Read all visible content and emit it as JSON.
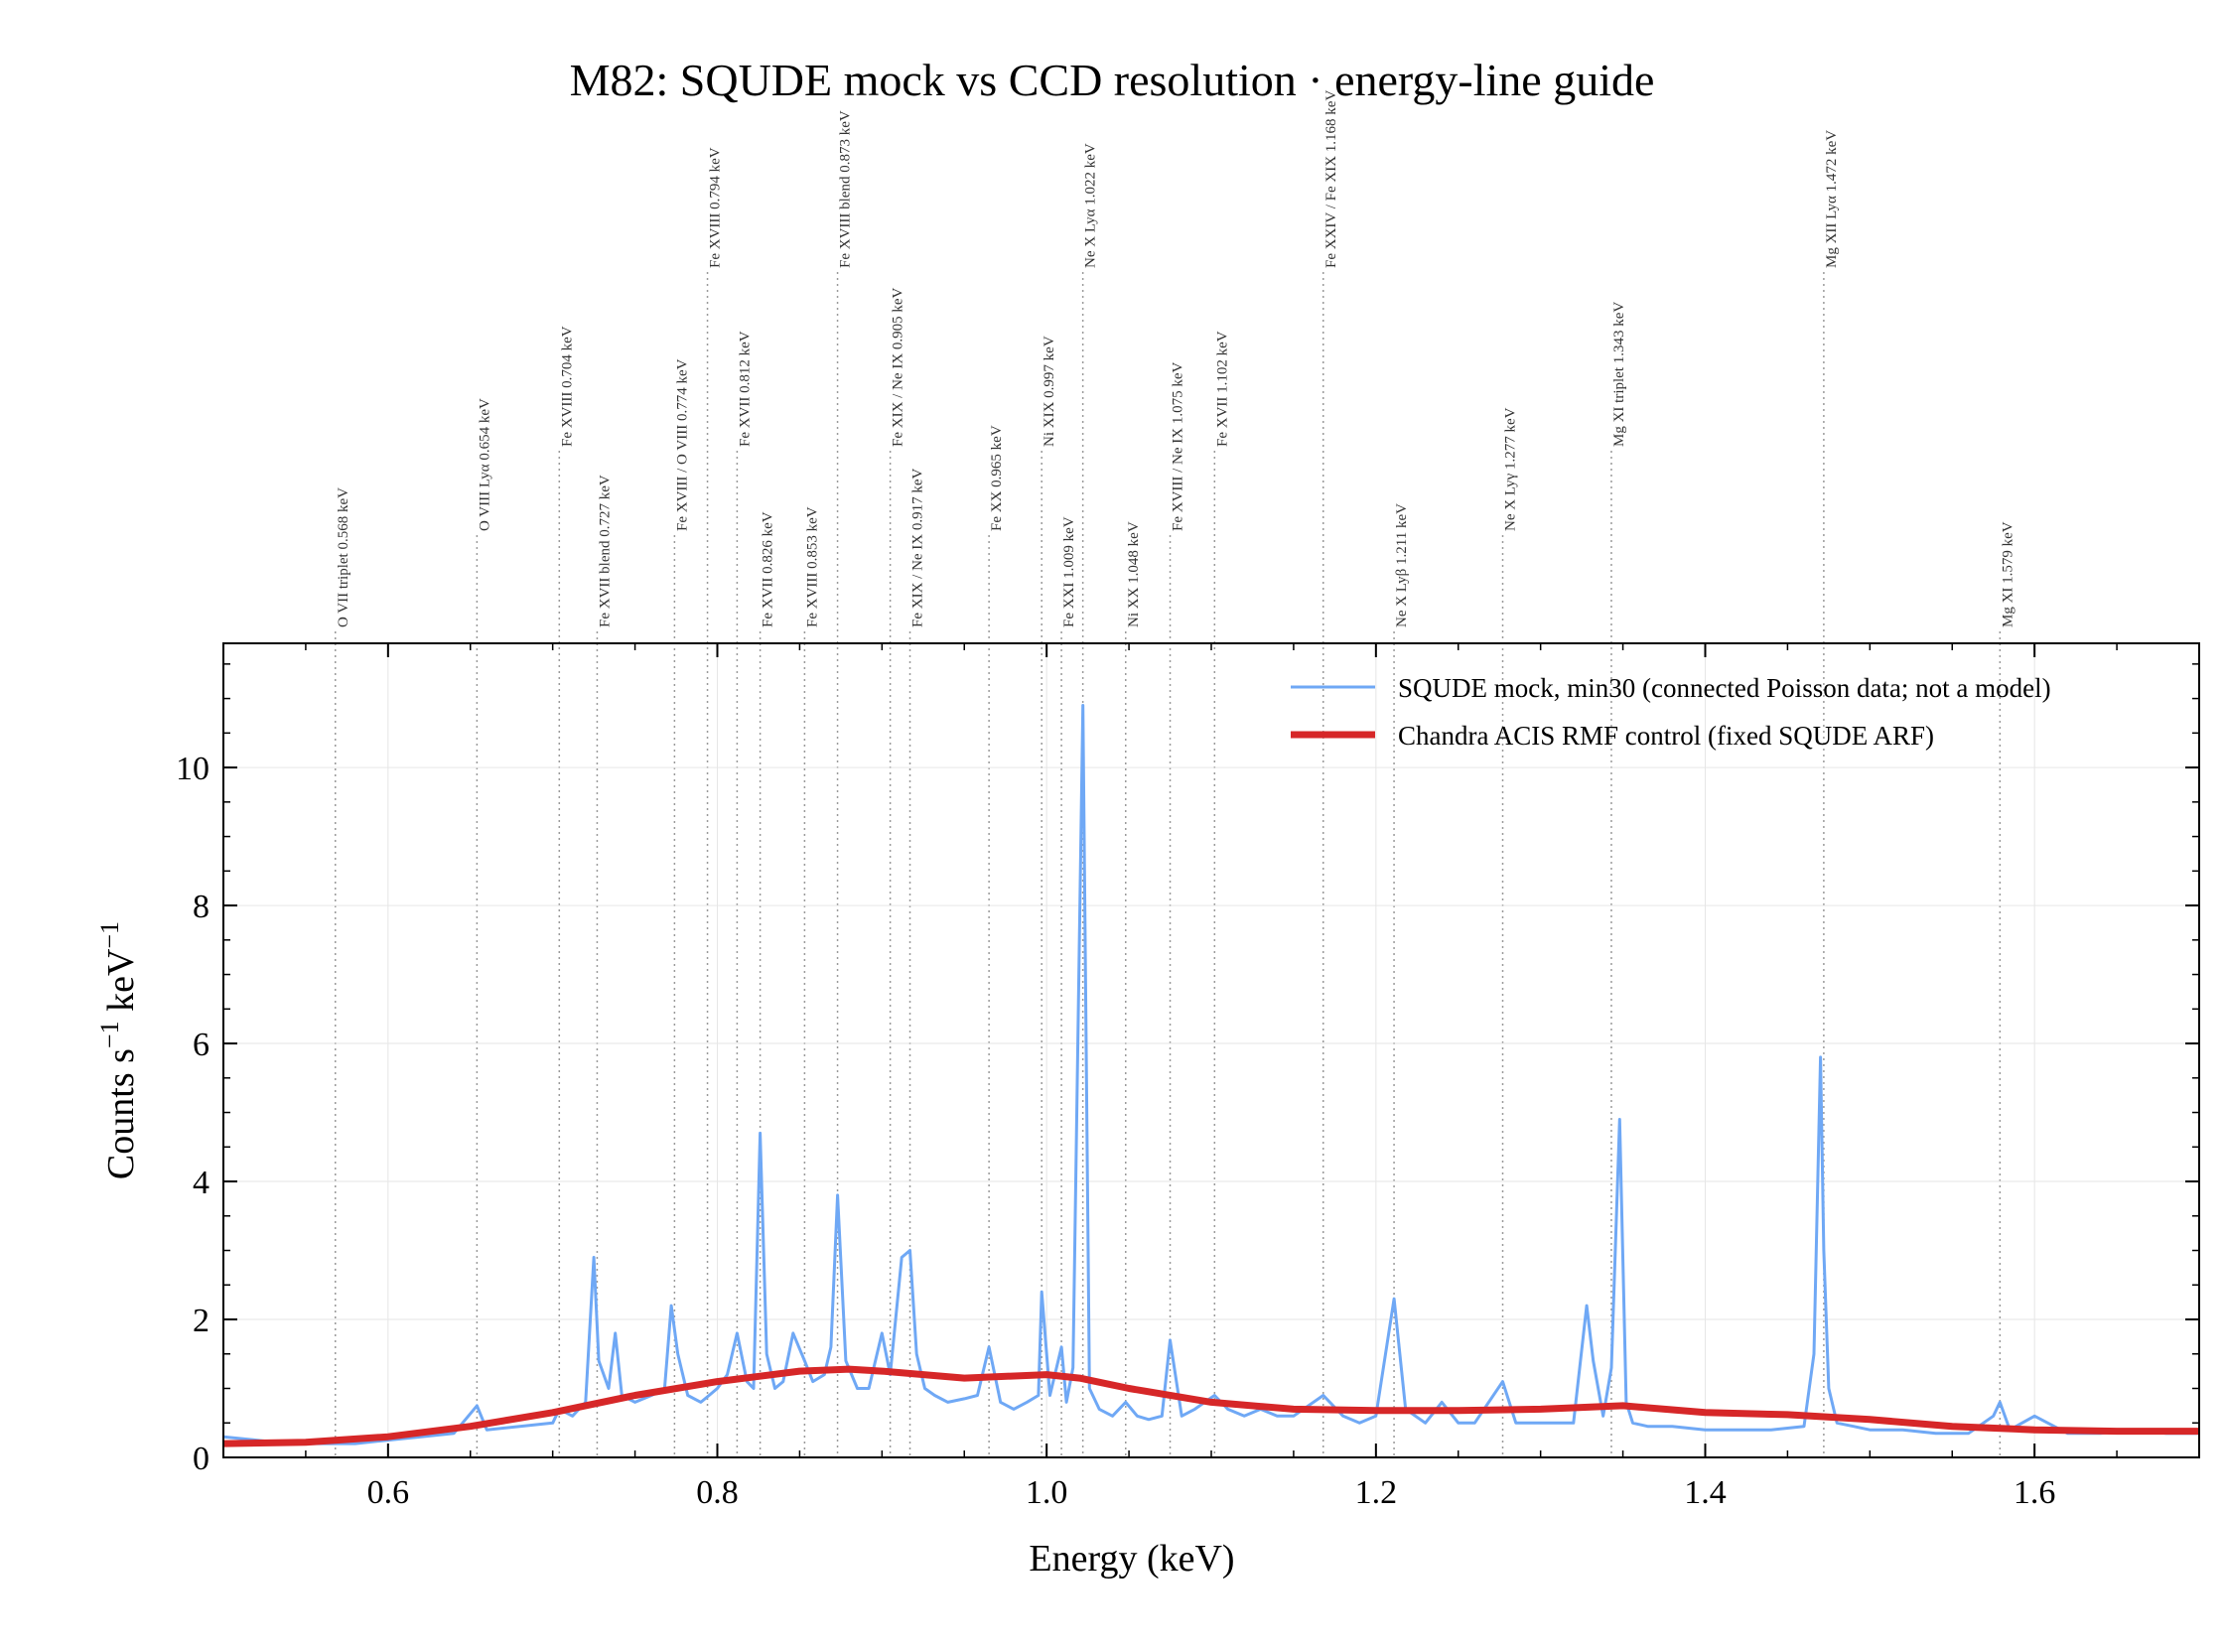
{
  "chart_data": {
    "type": "line",
    "title": "M82: SQUDE mock vs CCD resolution · energy-line guide",
    "xlabel": "Energy (keV)",
    "ylabel_main": "Counts s",
    "ylabel_sup1": "−1",
    "ylabel_mid": " keV",
    "ylabel_sup2": "−1",
    "xlim": [
      0.5,
      1.7
    ],
    "ylim": [
      0,
      11.8
    ],
    "xticks": [
      0.6,
      0.8,
      1.0,
      1.2,
      1.4,
      1.6
    ],
    "xtick_labels": [
      "0.6",
      "0.8",
      "1.0",
      "1.2",
      "1.4",
      "1.6"
    ],
    "yticks": [
      0,
      2,
      4,
      6,
      8,
      10
    ],
    "ytick_labels": [
      "0",
      "2",
      "4",
      "6",
      "8",
      "10"
    ],
    "grid": true,
    "legend_position": "top-right",
    "series": [
      {
        "name": "SQUDE mock, min30 (connected Poisson data; not a model)",
        "color": "#6fa8f5",
        "style": "thin",
        "x": [
          0.5,
          0.52,
          0.54,
          0.56,
          0.58,
          0.6,
          0.62,
          0.64,
          0.654,
          0.66,
          0.68,
          0.7,
          0.704,
          0.712,
          0.72,
          0.725,
          0.728,
          0.734,
          0.738,
          0.742,
          0.75,
          0.76,
          0.768,
          0.772,
          0.776,
          0.782,
          0.79,
          0.795,
          0.8,
          0.806,
          0.812,
          0.818,
          0.822,
          0.826,
          0.83,
          0.835,
          0.84,
          0.846,
          0.853,
          0.858,
          0.865,
          0.869,
          0.873,
          0.878,
          0.885,
          0.892,
          0.9,
          0.905,
          0.912,
          0.917,
          0.921,
          0.926,
          0.932,
          0.94,
          0.95,
          0.958,
          0.965,
          0.972,
          0.98,
          0.988,
          0.995,
          0.997,
          1.002,
          1.009,
          1.012,
          1.016,
          1.022,
          1.026,
          1.032,
          1.04,
          1.048,
          1.055,
          1.062,
          1.07,
          1.075,
          1.082,
          1.09,
          1.102,
          1.11,
          1.12,
          1.13,
          1.14,
          1.15,
          1.168,
          1.18,
          1.19,
          1.2,
          1.211,
          1.218,
          1.23,
          1.24,
          1.25,
          1.26,
          1.277,
          1.285,
          1.3,
          1.32,
          1.328,
          1.332,
          1.338,
          1.343,
          1.348,
          1.352,
          1.356,
          1.365,
          1.38,
          1.4,
          1.42,
          1.44,
          1.46,
          1.466,
          1.47,
          1.472,
          1.475,
          1.48,
          1.49,
          1.5,
          1.52,
          1.54,
          1.56,
          1.575,
          1.579,
          1.585,
          1.6,
          1.62,
          1.64,
          1.66,
          1.68,
          1.7
        ],
        "y": [
          0.3,
          0.25,
          0.2,
          0.2,
          0.2,
          0.25,
          0.3,
          0.35,
          0.75,
          0.4,
          0.45,
          0.5,
          0.7,
          0.6,
          0.8,
          2.9,
          1.4,
          1.0,
          1.8,
          0.9,
          0.8,
          0.9,
          1.0,
          2.2,
          1.5,
          0.9,
          0.8,
          0.9,
          1.0,
          1.2,
          1.8,
          1.1,
          1.0,
          4.7,
          1.5,
          1.0,
          1.1,
          1.8,
          1.4,
          1.1,
          1.2,
          1.6,
          3.8,
          1.4,
          1.0,
          1.0,
          1.8,
          1.2,
          2.9,
          3.0,
          1.5,
          1.0,
          0.9,
          0.8,
          0.85,
          0.9,
          1.6,
          0.8,
          0.7,
          0.8,
          0.9,
          2.4,
          0.9,
          1.6,
          0.8,
          1.3,
          10.9,
          1.0,
          0.7,
          0.6,
          0.8,
          0.6,
          0.55,
          0.6,
          1.7,
          0.6,
          0.7,
          0.9,
          0.7,
          0.6,
          0.7,
          0.6,
          0.6,
          0.9,
          0.6,
          0.5,
          0.6,
          2.3,
          0.7,
          0.5,
          0.8,
          0.5,
          0.5,
          1.1,
          0.5,
          0.5,
          0.5,
          2.2,
          1.4,
          0.6,
          1.3,
          4.9,
          0.8,
          0.5,
          0.45,
          0.45,
          0.4,
          0.4,
          0.4,
          0.45,
          1.5,
          5.8,
          3.0,
          1.0,
          0.5,
          0.45,
          0.4,
          0.4,
          0.35,
          0.35,
          0.6,
          0.8,
          0.4,
          0.6,
          0.35,
          0.35,
          0.4,
          0.35,
          0.35
        ]
      },
      {
        "name": "Chandra ACIS RMF control (fixed SQUDE ARF)",
        "color": "#d62728",
        "style": "thick",
        "x": [
          0.5,
          0.55,
          0.6,
          0.65,
          0.7,
          0.75,
          0.8,
          0.85,
          0.88,
          0.9,
          0.95,
          1.0,
          1.02,
          1.05,
          1.1,
          1.15,
          1.2,
          1.25,
          1.3,
          1.35,
          1.4,
          1.45,
          1.5,
          1.55,
          1.6,
          1.65,
          1.7
        ],
        "y": [
          0.2,
          0.22,
          0.3,
          0.45,
          0.65,
          0.9,
          1.1,
          1.25,
          1.28,
          1.25,
          1.15,
          1.2,
          1.15,
          1.0,
          0.8,
          0.7,
          0.68,
          0.68,
          0.7,
          0.75,
          0.65,
          0.62,
          0.55,
          0.45,
          0.4,
          0.38,
          0.38
        ]
      }
    ],
    "line_guides": [
      {
        "label": "O VII triplet 0.568 keV",
        "energy": 0.568,
        "tier": 0
      },
      {
        "label": "O VIII Lyα 0.654 keV",
        "energy": 0.654,
        "tier": 1
      },
      {
        "label": "Fe XVIII 0.704 keV",
        "energy": 0.704,
        "tier": 2
      },
      {
        "label": "Fe XVII blend 0.727 keV",
        "energy": 0.727,
        "tier": 0
      },
      {
        "label": "Fe XVIII / O VIII 0.774 keV",
        "energy": 0.774,
        "tier": 1
      },
      {
        "label": "Fe XVIII 0.794 keV",
        "energy": 0.794,
        "tier": 3
      },
      {
        "label": "Fe XVII 0.812 keV",
        "energy": 0.812,
        "tier": 2
      },
      {
        "label": "Fe XVII 0.826 keV",
        "energy": 0.826,
        "tier": 0
      },
      {
        "label": "Fe XVIII 0.853 keV",
        "energy": 0.853,
        "tier": 0
      },
      {
        "label": "Fe XVIII blend 0.873 keV",
        "energy": 0.873,
        "tier": 3
      },
      {
        "label": "Fe XIX / Ne IX 0.905 keV",
        "energy": 0.905,
        "tier": 2
      },
      {
        "label": "Fe XIX / Ne IX 0.917 keV",
        "energy": 0.917,
        "tier": 0
      },
      {
        "label": "Fe XX 0.965 keV",
        "energy": 0.965,
        "tier": 1
      },
      {
        "label": "Ni XIX 0.997 keV",
        "energy": 0.997,
        "tier": 2
      },
      {
        "label": "Fe XXI 1.009 keV",
        "energy": 1.009,
        "tier": 0
      },
      {
        "label": "Ne X Lyα 1.022 keV",
        "energy": 1.022,
        "tier": 3
      },
      {
        "label": "Ni XX 1.048 keV",
        "energy": 1.048,
        "tier": 0
      },
      {
        "label": "Fe XVIII / Ne IX 1.075 keV",
        "energy": 1.075,
        "tier": 1
      },
      {
        "label": "Fe XVII 1.102 keV",
        "energy": 1.102,
        "tier": 2
      },
      {
        "label": "Fe XXIV / Fe XIX 1.168 keV",
        "energy": 1.168,
        "tier": 3
      },
      {
        "label": "Ne X Lyβ 1.211 keV",
        "energy": 1.211,
        "tier": 0
      },
      {
        "label": "Ne X Lyγ 1.277 keV",
        "energy": 1.277,
        "tier": 1
      },
      {
        "label": "Mg XI triplet 1.343 keV",
        "energy": 1.343,
        "tier": 2
      },
      {
        "label": "Mg XII Lyα 1.472 keV",
        "energy": 1.472,
        "tier": 3
      },
      {
        "label": "Mg XI 1.579 keV",
        "energy": 1.579,
        "tier": 0
      }
    ]
  }
}
